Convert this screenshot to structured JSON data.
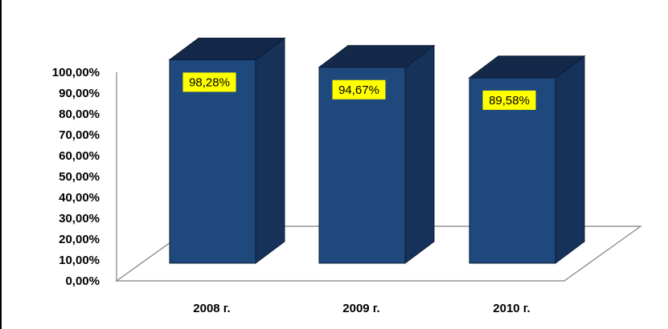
{
  "chart_data": {
    "type": "bar",
    "style": "3d-column",
    "categories": [
      "2008 г.",
      "2009 г.",
      "2010 г."
    ],
    "values": [
      98.28,
      94.67,
      89.58
    ],
    "data_labels": [
      "98,28%",
      "94,67%",
      "89,58%"
    ],
    "ylim": [
      0,
      100
    ],
    "y_ticks": [
      "0,00%",
      "10,00%",
      "20,00%",
      "30,00%",
      "40,00%",
      "50,00%",
      "60,00%",
      "70,00%",
      "80,00%",
      "90,00%",
      "100,00%"
    ],
    "grid": false,
    "legend": "none",
    "colors": {
      "bar_front": "#1f497d",
      "bar_side": "#17325a",
      "bar_top": "#14294a",
      "bar_outline": "#0b1a33",
      "label_bg": "#ffff00",
      "floor_line": "#808080"
    }
  }
}
